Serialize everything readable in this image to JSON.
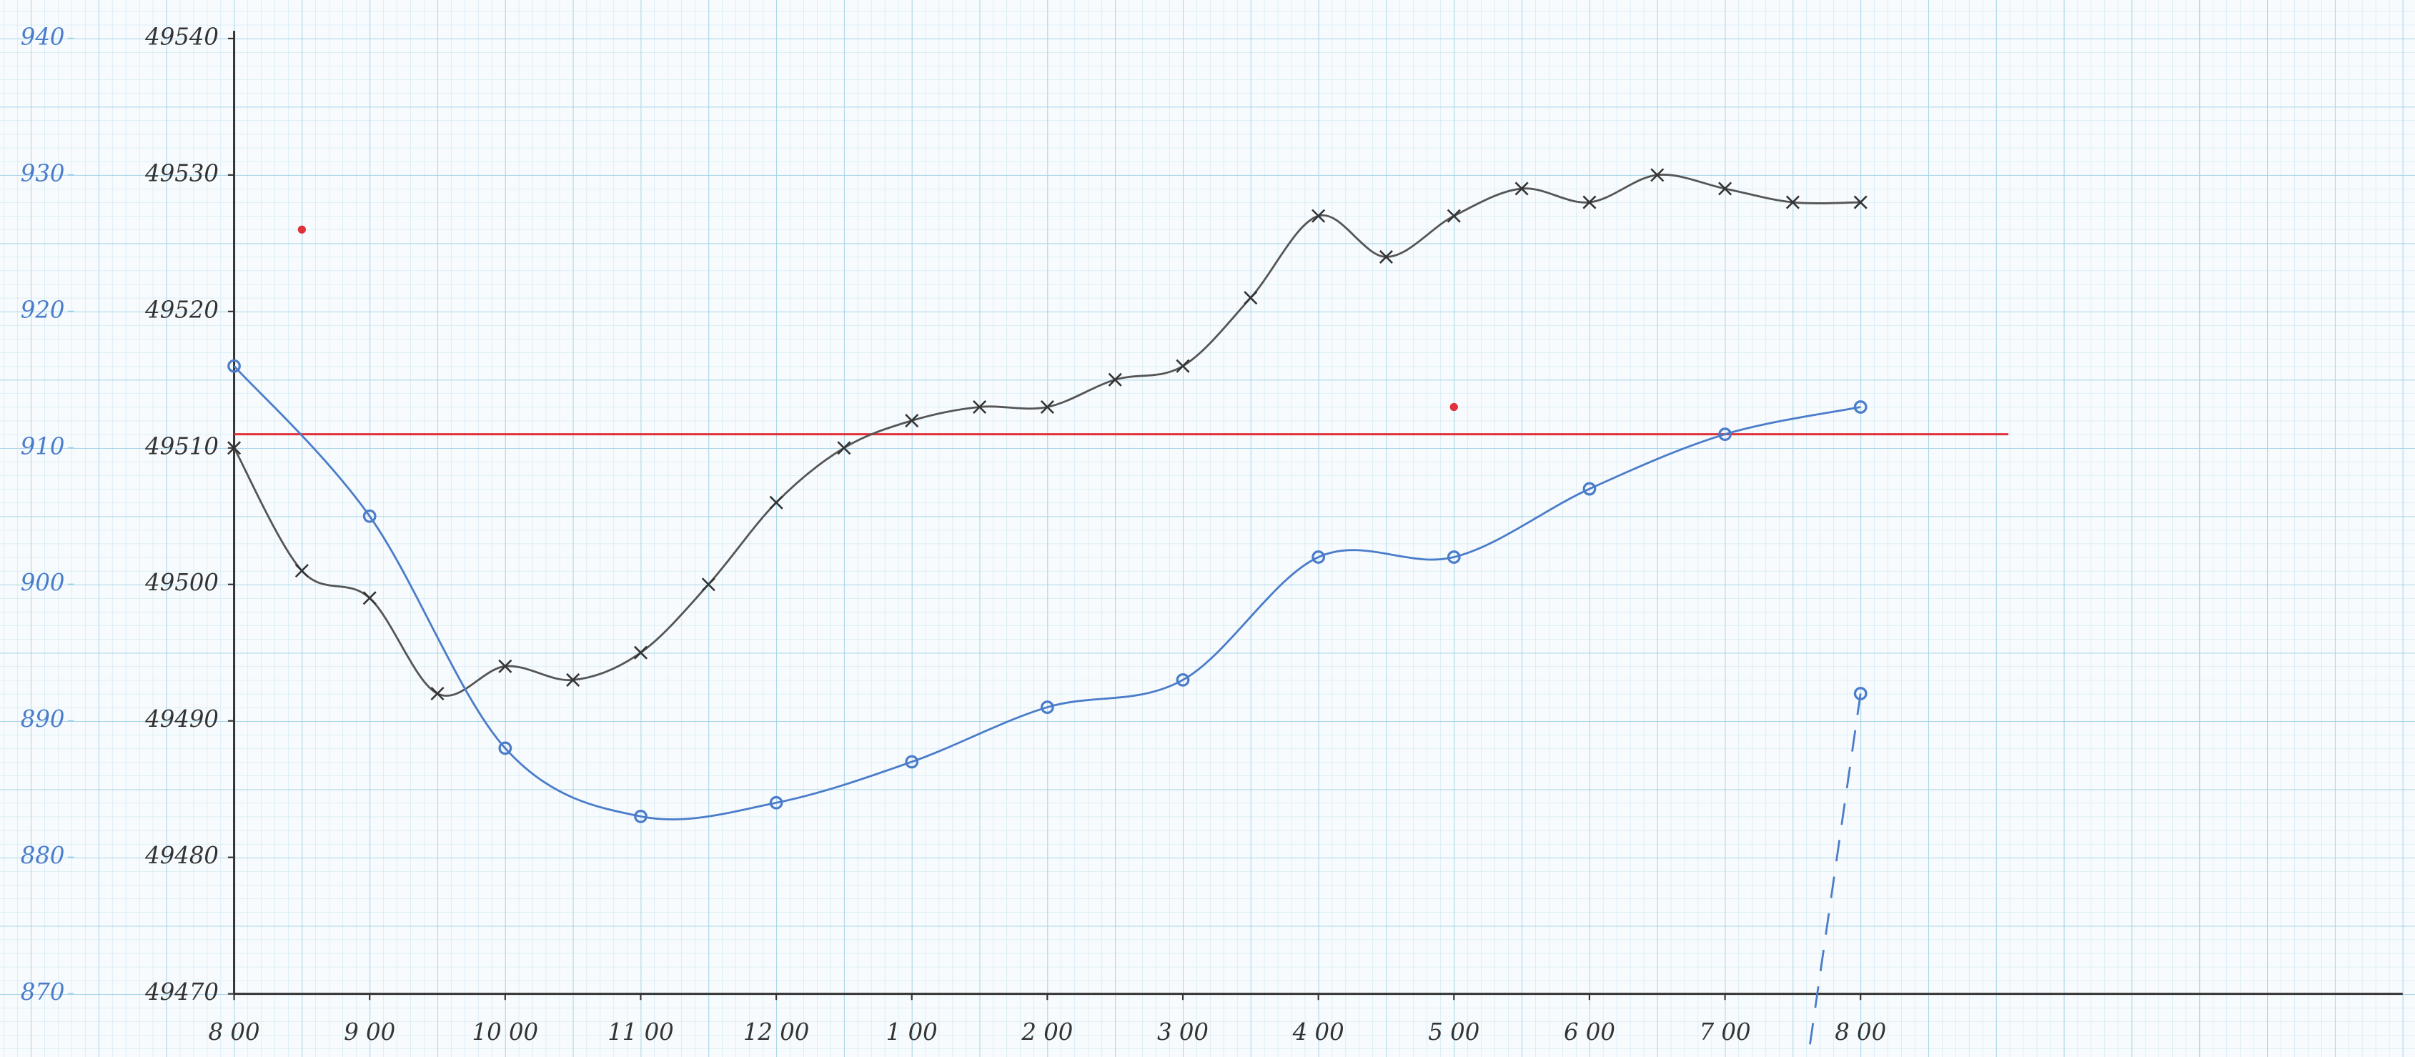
{
  "chart_data": {
    "type": "line",
    "xlim": [
      8,
      24
    ],
    "xticks": [
      {
        "value": 8,
        "label": "8 00"
      },
      {
        "value": 9,
        "label": "9 00"
      },
      {
        "value": 10,
        "label": "10 00"
      },
      {
        "value": 11,
        "label": "11 00"
      },
      {
        "value": 12,
        "label": "12 00"
      },
      {
        "value": 13,
        "label": "1 00"
      },
      {
        "value": 14,
        "label": "2 00"
      },
      {
        "value": 15,
        "label": "3 00"
      },
      {
        "value": 16,
        "label": "4 00"
      },
      {
        "value": 17,
        "label": "5 00"
      },
      {
        "value": 18,
        "label": "6 00"
      },
      {
        "value": 19,
        "label": "7 00"
      },
      {
        "value": 20,
        "label": "8 00"
      }
    ],
    "ylim": [
      49470,
      49540
    ],
    "yticks": [
      49470,
      49480,
      49490,
      49500,
      49510,
      49520,
      49530,
      49540
    ],
    "y2lim": [
      870,
      940
    ],
    "y2ticks": [
      870,
      880,
      890,
      900,
      910,
      920,
      930,
      940
    ],
    "grid": true,
    "series": [
      {
        "color": "#555555",
        "marker": "x",
        "line": true,
        "x": [
          8,
          8.5,
          9,
          9.5,
          10,
          10.5,
          11,
          11.5,
          12,
          12.5,
          13,
          13.5,
          14,
          14.5,
          15,
          15.5,
          16,
          16.5,
          17,
          17.5,
          18,
          18.5,
          19,
          19.5,
          20
        ],
        "values": [
          49510,
          49501,
          49499,
          49492,
          49494,
          49493,
          49495,
          49500,
          49506,
          49510,
          49512,
          49513,
          49513,
          49515,
          49516,
          49521,
          49527,
          49524,
          49527,
          49529,
          49528,
          49530,
          49529,
          49528,
          49528
        ]
      },
      {
        "color": "#4a7cc9",
        "marker": "o",
        "line": true,
        "axis": "y2",
        "x": [
          8,
          9,
          10,
          11,
          12,
          13,
          14,
          15,
          16,
          17,
          18,
          19,
          20
        ],
        "values": [
          916,
          905,
          888,
          883,
          884,
          887,
          891,
          893,
          902,
          902,
          907,
          911,
          913
        ]
      },
      {
        "color": "#e0303a",
        "marker": "dot",
        "line": false,
        "x": [
          8.5,
          17
        ],
        "values": [
          49526,
          49513
        ]
      },
      {
        "color": "#4a7cc9",
        "marker": "o",
        "line": false,
        "axis": "y2",
        "stem": true,
        "x": [
          20
        ],
        "values": [
          892
        ]
      }
    ],
    "reference_lines": [
      {
        "value": 49511,
        "color": "#e0303a"
      }
    ]
  }
}
